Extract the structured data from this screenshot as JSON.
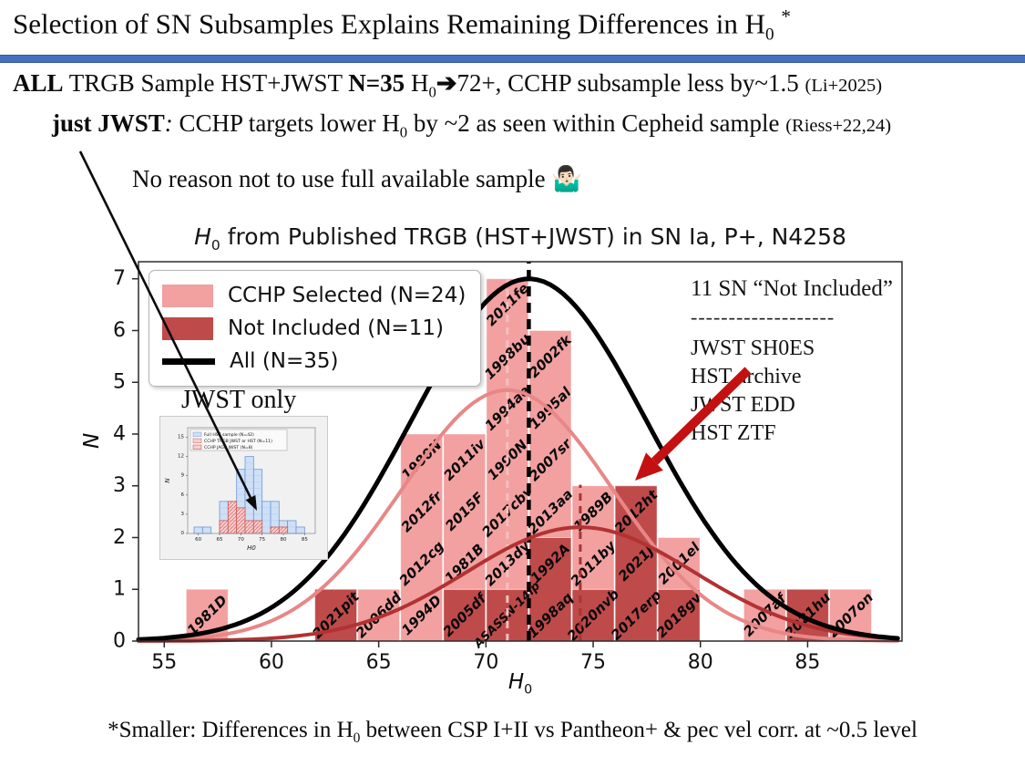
{
  "slide": {
    "title": [
      {
        "t": "Selection of SN Subsamples Explains Remaining Differences in H"
      },
      {
        "t": "0",
        "c": "sub"
      },
      {
        "t": " "
      },
      {
        "t": "*",
        "c": "sup"
      }
    ],
    "line1": [
      {
        "t": "ALL",
        "c": "b"
      },
      {
        "t": " TRGB Sample HST+JWST "
      },
      {
        "t": "N=35",
        "c": "b"
      },
      {
        "t": " H"
      },
      {
        "t": "0",
        "c": "sub"
      },
      {
        "t": "➔",
        "c": "b"
      },
      {
        "t": "72+, CCHP subsample less by~1.5 "
      },
      {
        "t": "(Li+2025)",
        "c": "small"
      }
    ],
    "line2": [
      {
        "t": "just JWST",
        "c": "b"
      },
      {
        "t": ": ",
        "c": "i"
      },
      {
        "t": "CCHP targets lower H"
      },
      {
        "t": "0",
        "c": "sub"
      },
      {
        "t": " by ~2 as seen within Cepheid sample "
      },
      {
        "t": "(Riess+22,24)",
        "c": "small"
      }
    ],
    "line3": [
      {
        "t": "No reason not to use full available sample "
      },
      {
        "t": "🤷🏻‍♂️",
        "c": "emoji"
      }
    ],
    "footer": [
      {
        "t": "*Smaller: Differences in H"
      },
      {
        "t": "0",
        "c": "sub"
      },
      {
        "t": " between CSP I+II vs Pantheon+ & pec vel corr. at ~0.5 level"
      }
    ]
  },
  "annotation": {
    "heading": "11 SN “Not Included”",
    "divider": "-------------------",
    "items": [
      "JWST SH0ES",
      "HST archive",
      "JWST EDD",
      "HST ZTF"
    ]
  },
  "colors": {
    "cchp": "#f2a0a0",
    "not_included": "#bf4a4a",
    "cchp_curve": "#e88787",
    "not_curve": "#b23232",
    "all_curve": "#000000",
    "cchp_vline": "#f5bfbf",
    "not_vline": "#a83434",
    "red_arrow": "#c31111",
    "blue_rule": "#4470bf",
    "blue_rule_edge": "#34579c"
  },
  "chart_data": {
    "type": "bar",
    "title": [
      {
        "t": "H",
        "c": "i"
      },
      {
        "t": "0",
        "c": "sub"
      },
      {
        "t": " from Published TRGB (HST+JWST) in SN Ia, P+, N4258"
      }
    ],
    "xlabel": [
      {
        "t": "H",
        "c": "i"
      },
      {
        "t": "0",
        "c": "sub"
      }
    ],
    "ylabel": [
      {
        "t": "N",
        "c": "i"
      }
    ],
    "xlim": [
      53.8,
      89.4
    ],
    "ylim": [
      0,
      7.33
    ],
    "xticks": [
      55,
      60,
      65,
      70,
      75,
      80,
      85
    ],
    "yticks": [
      0,
      1,
      2,
      3,
      4,
      5,
      6,
      7
    ],
    "bin_width": 2,
    "bins": [
      {
        "x": 56,
        "cells": [
          [
            "1981D",
            "cchp"
          ]
        ]
      },
      {
        "x": 62,
        "cells": [
          [
            "2021pit",
            "not"
          ]
        ]
      },
      {
        "x": 64,
        "cells": [
          [
            "2006dd",
            "cchp"
          ]
        ]
      },
      {
        "x": 66,
        "cells": [
          [
            "1994D",
            "cchp"
          ],
          [
            "2012cg",
            "cchp"
          ],
          [
            "2012fr",
            "cchp"
          ],
          [
            "1980N",
            "cchp"
          ]
        ]
      },
      {
        "x": 68,
        "cells": [
          [
            "2005df",
            "not"
          ],
          [
            "1981B",
            "cchp"
          ],
          [
            "2015F",
            "cchp"
          ],
          [
            "2011iv",
            "cchp"
          ]
        ]
      },
      {
        "x": 70,
        "cells": [
          [
            "ASASSN-14lp",
            "not"
          ],
          [
            "2013dy",
            "cchp"
          ],
          [
            "2017cbv",
            "cchp"
          ],
          [
            "1990N",
            "cchp"
          ],
          [
            "1994ae",
            "cchp"
          ],
          [
            "1998bu",
            "cchp"
          ],
          [
            "2011fe",
            "cchp"
          ]
        ]
      },
      {
        "x": 72,
        "cells": [
          [
            "1998aq",
            "not"
          ],
          [
            "1992A",
            "not"
          ],
          [
            "2013aa",
            "cchp"
          ],
          [
            "2007sr",
            "cchp"
          ],
          [
            "1995al",
            "cchp"
          ],
          [
            "2002fk",
            "cchp"
          ]
        ]
      },
      {
        "x": 74,
        "cells": [
          [
            "2020nvb",
            "not"
          ],
          [
            "2011by",
            "cchp"
          ],
          [
            "1989B",
            "cchp"
          ]
        ]
      },
      {
        "x": 76,
        "cells": [
          [
            "2017erp",
            "not"
          ],
          [
            "2021J",
            "not"
          ],
          [
            "2012ht",
            "not"
          ]
        ]
      },
      {
        "x": 78,
        "cells": [
          [
            "2018gv",
            "not"
          ],
          [
            "2001el",
            "cchp"
          ]
        ]
      },
      {
        "x": 82,
        "cells": [
          [
            "2007af",
            "cchp"
          ]
        ]
      },
      {
        "x": 84,
        "cells": [
          [
            "2021hu",
            "not"
          ]
        ]
      },
      {
        "x": 86,
        "cells": [
          [
            "2007on",
            "cchp"
          ]
        ]
      }
    ],
    "legend": [
      {
        "label": "CCHP Selected (N=24)",
        "type": "patch",
        "color": "#f2a0a0"
      },
      {
        "label": "Not Included (N=11)",
        "type": "patch",
        "color": "#bf4a4a"
      },
      {
        "label": "All (N=35)",
        "type": "line",
        "color": "#000000"
      }
    ],
    "curves": [
      {
        "name": "CCHP Selected",
        "color": "#e88787",
        "mu": 71.0,
        "amp": 4.85,
        "sigma": 4.9,
        "w": 4
      },
      {
        "name": "Not Included",
        "color": "#b23232",
        "mu": 74.4,
        "amp": 2.2,
        "sigma": 5.3,
        "w": 4
      },
      {
        "name": "All (N=35)",
        "color": "#000000",
        "mu": 72.0,
        "amp": 7.0,
        "sigma": 5.5,
        "w": 5
      }
    ],
    "vlines": [
      {
        "x": 71.0,
        "color": "#f5bfbf",
        "ymax": 7.0,
        "w": 3,
        "dash": "8,6"
      },
      {
        "x": 74.4,
        "color": "#a83434",
        "ymax": 3.02,
        "w": 3,
        "dash": "8,6"
      },
      {
        "x": 72.0,
        "color": "#000000",
        "ymax": 7.33,
        "w": 4.5,
        "dash": "11,7"
      }
    ]
  },
  "inset": {
    "title": "JWST only",
    "legend": [
      {
        "label": "Full HST sample (N=42)",
        "color": "#cfe0f6",
        "edge": "#6b97d8"
      },
      {
        "label": "CCHP TRGB JWST or HST (N=11)",
        "color": "#f8d0d0",
        "edge": "#cc5555"
      },
      {
        "label": "CCHP JAGB JWST (N=8)",
        "color": "#f8d0d0",
        "edge": "#cc3333"
      }
    ],
    "xlabel": "H0",
    "ylabel": "N",
    "xticks": [
      60,
      65,
      70,
      75,
      80,
      85
    ],
    "yticks": [
      0,
      3,
      6,
      9,
      12,
      15
    ],
    "blue_bins": [
      [
        59,
        1
      ],
      [
        61,
        1
      ],
      [
        65,
        5
      ],
      [
        67,
        5
      ],
      [
        69,
        10
      ],
      [
        71,
        12
      ],
      [
        73,
        10
      ],
      [
        75,
        5
      ],
      [
        77,
        5
      ],
      [
        79,
        2
      ],
      [
        81,
        2
      ],
      [
        83,
        1
      ]
    ],
    "red_bins": [
      [
        65,
        2
      ],
      [
        67,
        5
      ],
      [
        69,
        4
      ],
      [
        71,
        2
      ],
      [
        73,
        2
      ],
      [
        77,
        1
      ],
      [
        79,
        1
      ]
    ]
  }
}
